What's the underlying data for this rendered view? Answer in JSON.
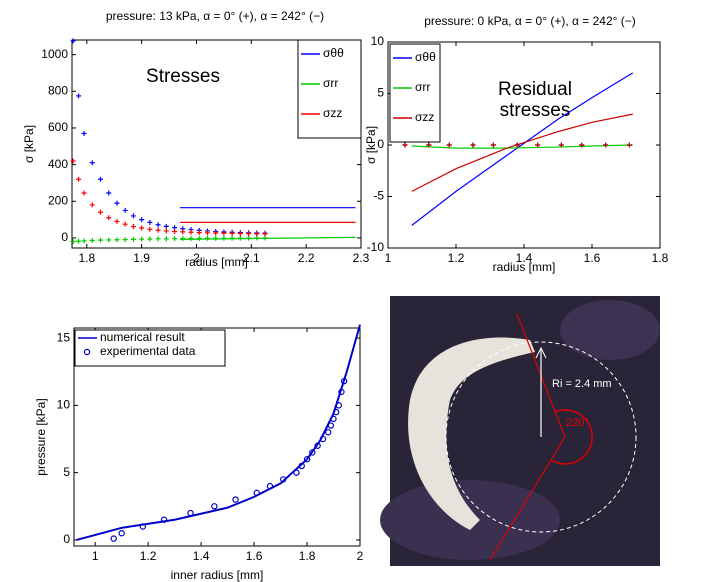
{
  "chart_data": [
    {
      "type": "line",
      "title": "pressure: 13 kPa, α = 0° (+), α = 242° (−)",
      "x_label": "radius [mm]",
      "y_label": "σ [kPa]",
      "annotation": [
        "Stresses"
      ],
      "legend": "upper right",
      "xlim": [
        1.773,
        2.3
      ],
      "xticks": [
        1.8,
        1.9,
        2,
        2.1,
        2.2,
        2.3
      ],
      "ylim": [
        -55,
        1080
      ],
      "yticks": [
        0,
        200,
        400,
        600,
        800,
        1000
      ],
      "series": [
        {
          "name": "σθθ",
          "color": "#0000ff",
          "x": [
            1.97,
            2.29
          ],
          "values": [
            165,
            165
          ],
          "plus_x": [
            1.775,
            1.785,
            1.795,
            1.81,
            1.825,
            1.84,
            1.855,
            1.87,
            1.885,
            1.9,
            1.915,
            1.93,
            1.945,
            1.96,
            1.975,
            1.99,
            2.005,
            2.02,
            2.035,
            2.05,
            2.065,
            2.08,
            2.095,
            2.11,
            2.125
          ],
          "plus_values": [
            1075,
            775,
            570,
            410,
            320,
            245,
            190,
            150,
            120,
            100,
            85,
            72,
            63,
            56,
            50,
            45,
            41,
            38,
            35,
            33,
            31,
            29,
            28,
            27,
            26
          ]
        },
        {
          "name": "σrr",
          "color": "#00cc00",
          "x": [
            1.97,
            2.29
          ],
          "values": [
            -8,
            3
          ],
          "plus_x": [
            1.775,
            1.785,
            1.795,
            1.81,
            1.825,
            1.84,
            1.855,
            1.87,
            1.885,
            1.9,
            1.915,
            1.93,
            1.945,
            1.96,
            1.975,
            1.99,
            2.005,
            2.02,
            2.035,
            2.05,
            2.065,
            2.08,
            2.095,
            2.11,
            2.125
          ],
          "plus_values": [
            -20,
            -18,
            -16,
            -14,
            -12,
            -11,
            -10,
            -9,
            -8,
            -7,
            -6,
            -5,
            -5,
            -4,
            -4,
            -3,
            -3,
            -2,
            -2,
            -2,
            -1,
            -1,
            -1,
            0,
            0
          ]
        },
        {
          "name": "σzz",
          "color": "#ff0000",
          "x": [
            1.97,
            2.29
          ],
          "values": [
            85,
            85
          ],
          "plus_x": [
            1.775,
            1.785,
            1.795,
            1.81,
            1.825,
            1.84,
            1.855,
            1.87,
            1.885,
            1.9,
            1.915,
            1.93,
            1.945,
            1.96,
            1.975,
            1.99,
            2.005,
            2.02,
            2.035,
            2.05,
            2.065,
            2.08,
            2.095,
            2.11,
            2.125
          ],
          "plus_values": [
            420,
            320,
            245,
            180,
            140,
            110,
            90,
            75,
            62,
            54,
            47,
            42,
            38,
            35,
            33,
            31,
            29,
            28,
            27,
            26,
            25,
            24,
            23,
            22,
            22
          ]
        }
      ]
    },
    {
      "type": "line",
      "title": "pressure: 0 kPa, α = 0° (+), α = 242° (−)",
      "x_label": "radius [mm]",
      "y_label": "σ [kPa]",
      "annotation": [
        "Residual",
        "stresses"
      ],
      "legend": "upper left",
      "xlim": [
        1,
        1.8
      ],
      "xticks": [
        1,
        1.2,
        1.4,
        1.6,
        1.8
      ],
      "ylim": [
        -10,
        10
      ],
      "yticks": [
        -10,
        -5,
        0,
        5,
        10
      ],
      "series": [
        {
          "name": "σθθ",
          "color": "#0000ff",
          "x": [
            1.07,
            1.2,
            1.35,
            1.5,
            1.6,
            1.72
          ],
          "values": [
            -7.8,
            -4.5,
            -1,
            2.5,
            4.6,
            7
          ],
          "plus_x": [
            1.05,
            1.12,
            1.18,
            1.25,
            1.31,
            1.38,
            1.44,
            1.51,
            1.57,
            1.64,
            1.71
          ],
          "plus_values": [
            0,
            0,
            0,
            0,
            0,
            0,
            0,
            0,
            0,
            0,
            0
          ]
        },
        {
          "name": "σrr",
          "color": "#00cc00",
          "x": [
            1.07,
            1.2,
            1.35,
            1.5,
            1.6,
            1.72
          ],
          "values": [
            -0.1,
            -0.3,
            -0.3,
            -0.2,
            -0.1,
            0
          ],
          "plus_x": [
            1.05,
            1.12,
            1.18,
            1.25,
            1.31,
            1.38,
            1.44,
            1.51,
            1.57,
            1.64,
            1.71
          ],
          "plus_values": [
            0,
            0,
            0,
            0,
            0,
            0,
            0,
            0,
            0,
            0,
            0
          ]
        },
        {
          "name": "σzz",
          "color": "#cc0000",
          "x": [
            1.07,
            1.2,
            1.35,
            1.5,
            1.6,
            1.72
          ],
          "values": [
            -4.5,
            -2.3,
            -0.3,
            1.3,
            2.2,
            3
          ],
          "plus_x": [
            1.05,
            1.12,
            1.18,
            1.25,
            1.31,
            1.38,
            1.44,
            1.51,
            1.57,
            1.64,
            1.71
          ],
          "plus_values": [
            0,
            0,
            0,
            0,
            0,
            0,
            0,
            0,
            0,
            0,
            0
          ]
        }
      ]
    },
    {
      "type": "line",
      "x_label": "inner radius [mm]",
      "y_label": "pressure [kPa]",
      "legend": "upper left",
      "xlim": [
        0.92,
        2
      ],
      "xticks": [
        1,
        1.2,
        1.4,
        1.6,
        1.8,
        2
      ],
      "ylim": [
        -0.45,
        15.75
      ],
      "yticks": [
        0,
        5,
        10,
        15
      ],
      "series": [
        {
          "name": "numerical result",
          "color": "#0000cc",
          "style": "line",
          "x": [
            0.93,
            1.1,
            1.3,
            1.5,
            1.6,
            1.7,
            1.8,
            1.85,
            1.9,
            1.95,
            2.0
          ],
          "values": [
            0,
            0.9,
            1.5,
            2.4,
            3.2,
            4.2,
            6,
            7.4,
            9.4,
            12.5,
            16
          ]
        },
        {
          "name": "experimental data",
          "color": "#0000cc",
          "style": "o",
          "x": [
            1.07,
            1.1,
            1.18,
            1.26,
            1.36,
            1.45,
            1.53,
            1.61,
            1.66,
            1.71,
            1.76,
            1.78,
            1.8,
            1.82,
            1.84,
            1.86,
            1.88,
            1.89,
            1.9,
            1.91,
            1.92,
            1.93,
            1.94
          ],
          "values": [
            0.1,
            0.5,
            1,
            1.5,
            2,
            2.5,
            3,
            3.5,
            4,
            4.5,
            5,
            5.5,
            6,
            6.5,
            7,
            7.5,
            8,
            8.5,
            9,
            9.5,
            10,
            11,
            11.8
          ]
        }
      ]
    }
  ],
  "photo": {
    "radius_label": "Ri = 2.4 mm",
    "angle_label": "220°"
  }
}
